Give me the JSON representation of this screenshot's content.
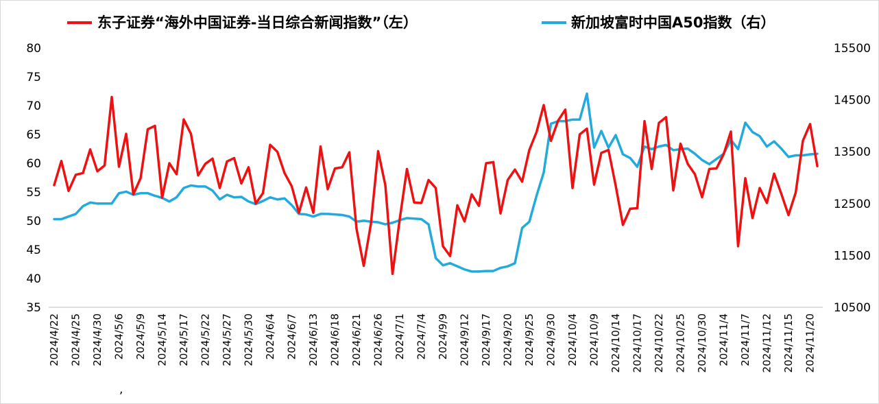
{
  "chart_data": {
    "type": "line",
    "title": "",
    "legend_position": "top",
    "grid": false,
    "series": [
      {
        "name": "东子证券“海外中国证券-当日综合新闻指数”（左）",
        "axis": "left",
        "color": "#ee1111",
        "values": [
          56.2,
          60.4,
          55.2,
          58.0,
          58.3,
          62.4,
          58.6,
          59.6,
          71.5,
          59.4,
          65.1,
          54.6,
          57.4,
          65.9,
          66.5,
          54.0,
          60.0,
          58.1,
          67.6,
          65.1,
          57.9,
          59.9,
          60.8,
          55.7,
          60.3,
          60.9,
          56.5,
          59.3,
          53.0,
          54.8,
          63.2,
          62.0,
          58.3,
          56.0,
          51.4,
          55.8,
          51.4,
          62.9,
          55.5,
          59.1,
          59.3,
          61.9,
          48.6,
          42.2,
          49.5,
          62.1,
          56.2,
          40.8,
          50.3,
          59.0,
          53.2,
          53.1,
          57.1,
          55.7,
          45.6,
          43.9,
          52.7,
          49.9,
          54.6,
          52.6,
          60.0,
          60.2,
          51.3,
          57.1,
          58.9,
          56.8,
          62.3,
          65.4,
          70.1,
          63.9,
          67.4,
          69.3,
          55.7,
          65.0,
          66.0,
          56.3,
          61.8,
          62.3,
          56.1,
          49.3,
          52.1,
          52.2,
          67.3,
          59.0,
          67.0,
          68.0,
          55.3,
          63.4,
          59.9,
          58.1,
          54.1,
          59.0,
          59.1,
          61.6,
          65.5,
          45.6,
          57.4,
          50.5,
          55.7,
          53.1,
          58.2,
          54.7,
          51.0,
          54.9,
          63.9,
          66.8,
          59.5
        ]
      },
      {
        "name": "新加坡富时中国A50指数（右）",
        "axis": "right",
        "color": "#22aadd",
        "values": [
          12200,
          12200,
          12250,
          12300,
          12450,
          12520,
          12500,
          12500,
          12500,
          12700,
          12730,
          12670,
          12700,
          12700,
          12650,
          12610,
          12540,
          12620,
          12800,
          12850,
          12830,
          12830,
          12750,
          12580,
          12670,
          12620,
          12630,
          12540,
          12490,
          12550,
          12620,
          12580,
          12600,
          12470,
          12300,
          12290,
          12250,
          12300,
          12300,
          12290,
          12280,
          12250,
          12150,
          12170,
          12150,
          12140,
          12100,
          12130,
          12180,
          12220,
          12210,
          12200,
          12100,
          11450,
          11310,
          11350,
          11290,
          11230,
          11190,
          11190,
          11200,
          11200,
          11260,
          11290,
          11350,
          12030,
          12150,
          12650,
          13100,
          14040,
          14090,
          14090,
          14120,
          14120,
          14620,
          13580,
          13900,
          13580,
          13820,
          13450,
          13380,
          13210,
          13600,
          13550,
          13600,
          13630,
          13530,
          13550,
          13560,
          13460,
          13340,
          13260,
          13360,
          13460,
          13730,
          13550,
          14060,
          13880,
          13800,
          13600,
          13700,
          13560,
          13400,
          13430,
          13430,
          13450,
          13460
        ]
      }
    ],
    "left_axis": {
      "min": 35,
      "max": 80,
      "ticks": [
        35,
        40,
        45,
        50,
        55,
        60,
        65,
        70,
        75,
        80
      ]
    },
    "right_axis": {
      "min": 10500,
      "max": 15500,
      "ticks": [
        10500,
        11500,
        12500,
        13500,
        14500,
        15500
      ]
    },
    "x_tick_labels": [
      "2024/4/22",
      "2024/4/25",
      "2024/4/30",
      "2024/5/6",
      "2024/5/9",
      "2024/5/14",
      "2024/5/17",
      "2024/5/22",
      "2024/5/27",
      "2024/5/30",
      "2024/6/4",
      "2024/6/7",
      "2024/6/13",
      "2024/6/18",
      "2024/6/21",
      "2024/6/26",
      "2024/7/1",
      "2024/7/4",
      "2024/9/9",
      "2024/9/12",
      "2024/9/17",
      "2024/9/20",
      "2024/9/25",
      "2024/9/30",
      "2024/10/4",
      "2024/10/9",
      "2024/10/14",
      "2024/10/17",
      "2024/10/22",
      "2024/10/25",
      "2024/10/30",
      "2024/11/4",
      "2024/11/7",
      "2024/11/12",
      "2024/11/15",
      "2024/11/20"
    ]
  }
}
